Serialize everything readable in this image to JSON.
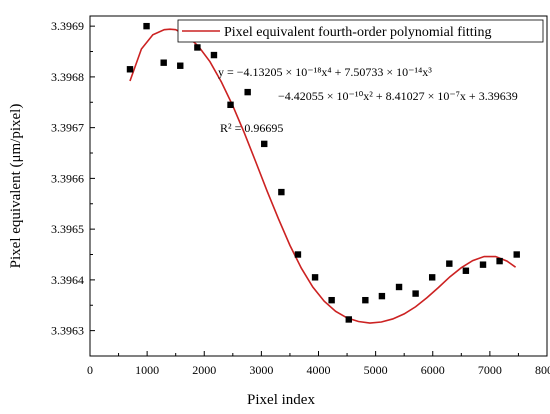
{
  "chart_data": {
    "type": "scatter",
    "title": "",
    "xlabel": "Pixel index",
    "ylabel": "Pixel equivalent (μm/pixel)",
    "xlim": [
      0,
      8000
    ],
    "ylim": [
      3.39625,
      3.39692
    ],
    "xticks": [
      0,
      1000,
      2000,
      3000,
      4000,
      5000,
      6000,
      7000,
      8000
    ],
    "yticks": [
      3.3963,
      3.3964,
      3.3965,
      3.3966,
      3.3967,
      3.3968,
      3.3969
    ],
    "grid": false,
    "legend": {
      "position": "top-right",
      "label": "Pixel equivalent fourth-order polynomial fitting"
    },
    "series": [
      {
        "type": "scatter",
        "marker": "square",
        "color": "#000000",
        "x": [
          700,
          990,
          1290,
          1580,
          1880,
          2170,
          2460,
          2760,
          3050,
          3350,
          3640,
          3940,
          4230,
          4530,
          4820,
          5110,
          5410,
          5700,
          5990,
          6290,
          6580,
          6880,
          7170,
          7470
        ],
        "y": [
          3.396815,
          3.3969,
          3.396828,
          3.396822,
          3.396858,
          3.396843,
          3.396745,
          3.39677,
          3.396668,
          3.396573,
          3.39645,
          3.396405,
          3.39636,
          3.396322,
          3.39636,
          3.396368,
          3.396386,
          3.396373,
          3.396405,
          3.396432,
          3.396418,
          3.39643,
          3.396437,
          3.39645
        ]
      },
      {
        "type": "line",
        "color": "#cc2222",
        "fit": {
          "x": [
            700,
            900,
            1100,
            1300,
            1400,
            1500,
            1700,
            1900,
            2100,
            2300,
            2500,
            2700,
            2900,
            3100,
            3300,
            3500,
            3700,
            3900,
            4100,
            4300,
            4500,
            4700,
            4900,
            5100,
            5300,
            5500,
            5700,
            5900,
            6100,
            6300,
            6500,
            6700,
            6900,
            7100,
            7300,
            7450
          ],
          "y": [
            3.396792,
            3.396855,
            3.396883,
            3.396893,
            3.396894,
            3.396893,
            3.396881,
            3.39686,
            3.39683,
            3.39679,
            3.396743,
            3.39669,
            3.396633,
            3.396575,
            3.39652,
            3.396468,
            3.396423,
            3.396386,
            3.396358,
            3.396338,
            3.396325,
            3.396318,
            3.396315,
            3.396317,
            3.396323,
            3.396333,
            3.396347,
            3.396365,
            3.396385,
            3.396406,
            3.396424,
            3.396438,
            3.396446,
            3.396446,
            3.396437,
            3.396425
          ]
        }
      }
    ],
    "annotations": {
      "equation_line1": "y = −4.13205 × 10⁻¹⁸x⁴ + 7.50733 × 10⁻¹⁴x³",
      "equation_line2": "−4.42055 × 10⁻¹⁰x² + 8.41027 × 10⁻⁷x + 3.39639",
      "r_squared": "R² = 0.96695"
    }
  }
}
